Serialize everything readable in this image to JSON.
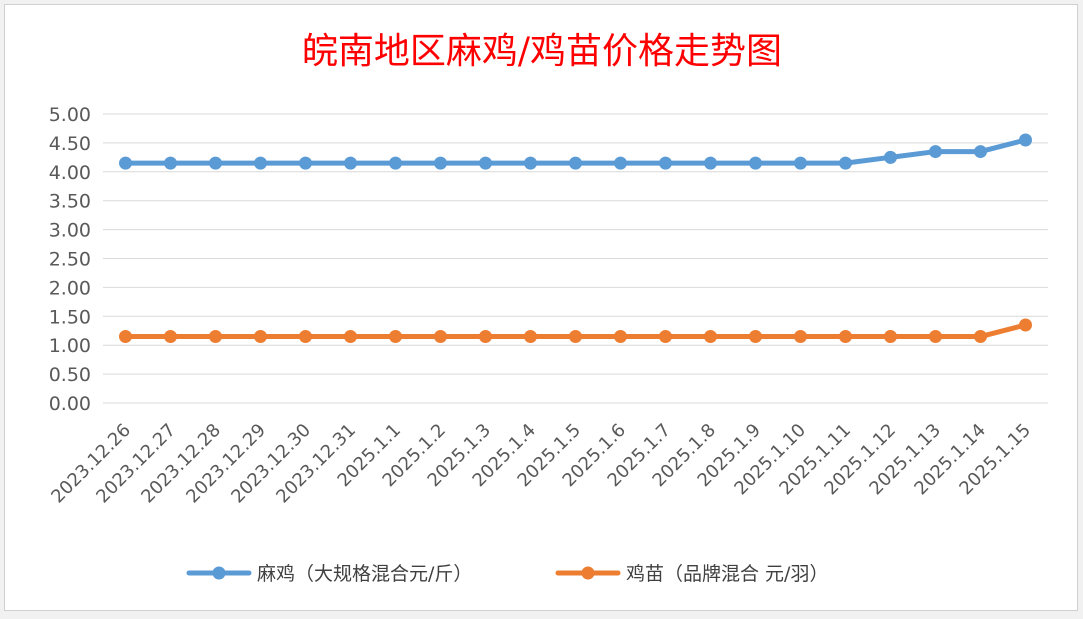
{
  "chart_data": {
    "type": "line",
    "title": "皖南地区麻鸡/鸡苗价格走势图",
    "title_color": "#ff0000",
    "xlabel": "",
    "ylabel": "",
    "x": [
      "2023.12.26",
      "2023.12.27",
      "2023.12.28",
      "2023.12.29",
      "2023.12.30",
      "2023.12.31",
      "2025.1.1",
      "2025.1.2",
      "2025.1.3",
      "2025.1.4",
      "2025.1.5",
      "2025.1.6",
      "2025.1.7",
      "2025.1.8",
      "2025.1.9",
      "2025.1.10",
      "2025.1.11",
      "2025.1.12",
      "2025.1.13",
      "2025.1.14",
      "2025.1.15"
    ],
    "ylim": [
      0,
      5
    ],
    "yticks": [
      "0.00",
      "0.50",
      "1.00",
      "1.50",
      "2.00",
      "2.50",
      "3.00",
      "3.50",
      "4.00",
      "4.50",
      "5.00"
    ],
    "grid": true,
    "legend_position": "bottom",
    "series": [
      {
        "name": "麻鸡（大规格混合元/斤）",
        "color": "#5b9bd5",
        "values": [
          4.15,
          4.15,
          4.15,
          4.15,
          4.15,
          4.15,
          4.15,
          4.15,
          4.15,
          4.15,
          4.15,
          4.15,
          4.15,
          4.15,
          4.15,
          4.15,
          4.15,
          4.25,
          4.35,
          4.35,
          4.55
        ]
      },
      {
        "name": "鸡苗（品牌混合 元/羽）",
        "color": "#ed7d31",
        "values": [
          1.15,
          1.15,
          1.15,
          1.15,
          1.15,
          1.15,
          1.15,
          1.15,
          1.15,
          1.15,
          1.15,
          1.15,
          1.15,
          1.15,
          1.15,
          1.15,
          1.15,
          1.15,
          1.15,
          1.15,
          1.35
        ]
      }
    ]
  }
}
